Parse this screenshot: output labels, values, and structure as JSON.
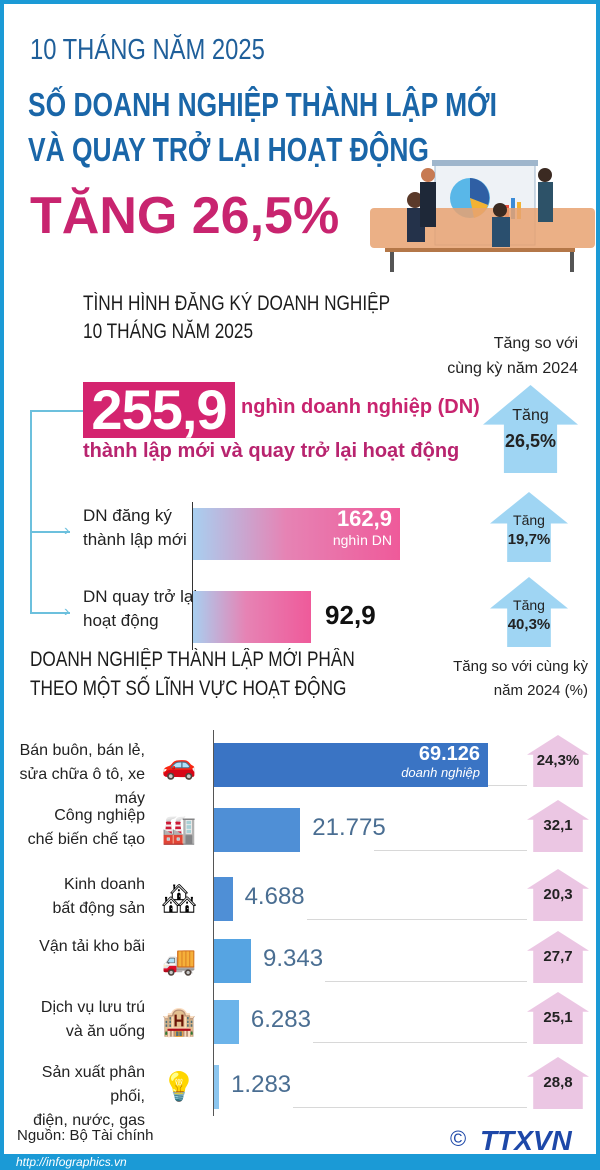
{
  "header": {
    "period": "10 THÁNG NĂM 2025",
    "title_line1": "SỐ DOANH NGHIỆP THÀNH LẬP MỚI",
    "title_line2": "VÀ QUAY TRỞ LẠI HOẠT ĐỘNG",
    "headline": "TĂNG 26,5%"
  },
  "registration": {
    "title_line1": "TÌNH HÌNH ĐĂNG KÝ DOANH NGHIỆP",
    "title_line2": "10 THÁNG NĂM 2025",
    "compare_header_line1": "Tăng so với",
    "compare_header_line2": "cùng kỳ năm 2024",
    "total": {
      "value": "255,9",
      "unit": "nghìn doanh nghiệp (DN)",
      "desc": "thành lập mới và quay trở lại hoạt động",
      "growth_label": "Tăng",
      "growth": "26,5%"
    },
    "items": [
      {
        "label_line1": "DN đăng ký",
        "label_line2": "thành lập mới",
        "value": 162.9,
        "value_text": "162,9",
        "unit": "nghìn DN",
        "growth_label": "Tăng",
        "growth": "19,7%"
      },
      {
        "label_line1": "DN quay trở lại",
        "label_line2": "hoạt động",
        "value": 92.9,
        "value_text": "92,9",
        "growth_label": "Tăng",
        "growth": "40,3%"
      }
    ]
  },
  "chart_data": {
    "type": "bar",
    "orientation": "horizontal",
    "title": "DOANH NGHIỆP THÀNH LẬP MỚI PHÂN THEO MỘT SỐ LĨNH VỰC HOẠT ĐỘNG",
    "title_line1": "DOANH NGHIỆP THÀNH LẬP MỚI PHÂN",
    "title_line2": "THEO MỘT SỐ LĨNH VỰC HOẠT ĐỘNG",
    "growth_header_line1": "Tăng so với cùng kỳ",
    "growth_header_line2": "năm 2024 (%)",
    "first_value_unit": "doanh nghiệp",
    "categories": [
      {
        "line1": "Bán buôn, bán lẻ,",
        "line2": "sửa chữa ô tô, xe máy",
        "icon": "car-motorbike-icon"
      },
      {
        "line1": "Công nghiệp",
        "line2": "chế biến chế tạo",
        "icon": "factory-conveyor-icon"
      },
      {
        "line1": "Kinh doanh",
        "line2": "bất động sản",
        "icon": "house-key-icon"
      },
      {
        "line1": "Vận tải kho bãi",
        "line2": "",
        "icon": "truck-icon"
      },
      {
        "line1": "Dịch vụ lưu trú",
        "line2": "và ăn uống",
        "icon": "hotel-icon"
      },
      {
        "line1": "Sản xuất phân phối,",
        "line2": "điện, nước, gas",
        "icon": "utilities-icon"
      }
    ],
    "values": [
      69126,
      21775,
      4688,
      9343,
      6283,
      1283
    ],
    "value_labels": [
      "69.126",
      "21.775",
      "4.688",
      "9.343",
      "6.283",
      "1.283"
    ],
    "growth": [
      "24,3%",
      "32,1",
      "20,3",
      "27,7",
      "25,1",
      "28,8"
    ],
    "colors": [
      "#3a74c4",
      "#4f8fd6",
      "#4f8fd6",
      "#56a4e2",
      "#6cb4ea",
      "#8cc6ef"
    ]
  },
  "footer": {
    "source": "Nguồn: Bộ Tài chính",
    "logo": "TTXVN",
    "copyright": "©",
    "url": "http://infographics.vn"
  },
  "colors": {
    "frame": "#1b9ad6",
    "title_blue": "#1a66a8",
    "magenta": "#c8246f",
    "arrow_blue": "#9fd5f3",
    "arrow_pink": "#ebc6e3"
  }
}
